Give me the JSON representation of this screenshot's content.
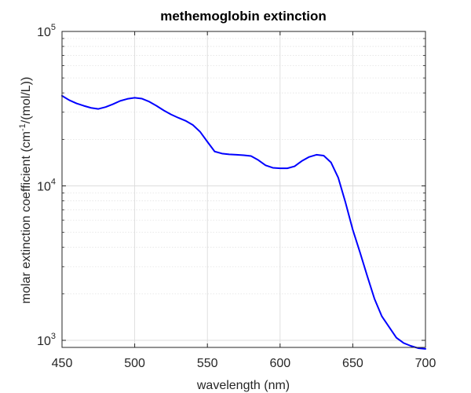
{
  "chart_data": {
    "type": "line",
    "title": "methemoglobin extinction",
    "xlabel": "wavelength (nm)",
    "ylabel_main": "molar extinction coefficient (cm",
    "ylabel_sup": "-1",
    "ylabel_tail": "/(mol/L))",
    "xlim": [
      450,
      700
    ],
    "ylim": [
      900,
      100000
    ],
    "yscale": "log",
    "grid": true,
    "x_ticks": [
      450,
      500,
      550,
      600,
      650,
      700
    ],
    "x_tick_labels": [
      "450",
      "500",
      "550",
      "600",
      "650",
      "700"
    ],
    "y_ticks": [
      1000,
      10000,
      100000
    ],
    "y_tick_labels": [
      {
        "base": "10",
        "exp": "3"
      },
      {
        "base": "10",
        "exp": "4"
      },
      {
        "base": "10",
        "exp": "5"
      }
    ],
    "series": [
      {
        "color": "#0000ff",
        "x": [
          450,
          455,
          460,
          465,
          470,
          475,
          480,
          485,
          490,
          495,
          500,
          505,
          510,
          515,
          520,
          525,
          530,
          535,
          540,
          545,
          550,
          555,
          560,
          565,
          570,
          575,
          580,
          585,
          590,
          595,
          600,
          605,
          610,
          615,
          620,
          625,
          630,
          635,
          640,
          645,
          650,
          655,
          660,
          665,
          670,
          675,
          680,
          685,
          690,
          695,
          700
        ],
        "y": [
          38300,
          35900,
          34200,
          33000,
          32000,
          31500,
          32400,
          33800,
          35500,
          36600,
          37200,
          36700,
          35100,
          33000,
          30800,
          29000,
          27600,
          26400,
          24800,
          22400,
          19300,
          16700,
          16200,
          16000,
          15900,
          15800,
          15600,
          14700,
          13600,
          13100,
          13000,
          13000,
          13400,
          14500,
          15400,
          15900,
          15700,
          14200,
          11300,
          7800,
          5200,
          3700,
          2600,
          1850,
          1430,
          1220,
          1040,
          960,
          920,
          890,
          880
        ]
      }
    ]
  }
}
